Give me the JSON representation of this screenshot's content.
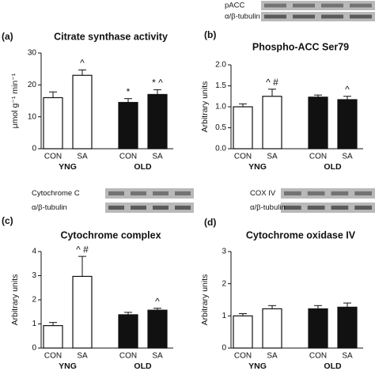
{
  "chart_data": [
    {
      "type": "bar",
      "panel": "(a)",
      "title": "Citrate synthase activity",
      "y_label": "μmol g⁻¹ min⁻¹",
      "categories": [
        "CON",
        "SA",
        "CON",
        "SA"
      ],
      "groups": [
        "YNG",
        "OLD"
      ],
      "values": [
        16,
        23,
        14.5,
        17
      ],
      "errors": [
        1.8,
        1.7,
        1.2,
        1.5
      ],
      "colors": [
        "#ffffff",
        "#ffffff",
        "#111111",
        "#111111"
      ],
      "annotations": [
        null,
        "^",
        "*",
        "* ^"
      ],
      "ylim": [
        0,
        30
      ],
      "yticks": [
        0,
        10,
        20,
        30
      ]
    },
    {
      "type": "bar",
      "panel": "(b)",
      "title": "Phospho-ACC Ser79",
      "y_label": "Arbitrary units",
      "blot_labels": [
        "pACC",
        "α/β-tubulin"
      ],
      "categories": [
        "CON",
        "SA",
        "CON",
        "SA"
      ],
      "groups": [
        "YNG",
        "OLD"
      ],
      "values": [
        1.0,
        1.25,
        1.23,
        1.17
      ],
      "errors": [
        0.07,
        0.17,
        0.05,
        0.08
      ],
      "colors": [
        "#ffffff",
        "#ffffff",
        "#111111",
        "#111111"
      ],
      "annotations": [
        null,
        "^ #",
        null,
        "^"
      ],
      "ylim": [
        0,
        2
      ],
      "yticks": [
        {
          "value": 0,
          "label": "0.0"
        },
        {
          "value": 0.5,
          "label": "0.5"
        },
        {
          "value": 1,
          "label": "1.0"
        },
        {
          "value": 1.5,
          "label": "1.5"
        },
        {
          "value": 2,
          "label": "2.0"
        }
      ]
    },
    {
      "type": "bar",
      "panel": "(c)",
      "title": "Cytochrome complex",
      "y_label": "Arbitrary units",
      "blot_labels": [
        "Cytochrome C",
        "α/β-tubulin"
      ],
      "categories": [
        "CON",
        "SA",
        "CON",
        "SA"
      ],
      "groups": [
        "YNG",
        "OLD"
      ],
      "values": [
        0.93,
        2.97,
        1.38,
        1.57
      ],
      "errors": [
        0.13,
        0.83,
        0.1,
        0.08
      ],
      "colors": [
        "#ffffff",
        "#ffffff",
        "#111111",
        "#111111"
      ],
      "annotations": [
        null,
        "^ #",
        null,
        "^"
      ],
      "ylim": [
        0,
        4
      ],
      "yticks": [
        0,
        1,
        2,
        3,
        4
      ]
    },
    {
      "type": "bar",
      "panel": "(d)",
      "title": "Cytochrome oxidase IV",
      "y_label": "Arbitrary units",
      "blot_labels": [
        "COX IV",
        "α/β-tubulin"
      ],
      "categories": [
        "CON",
        "SA",
        "CON",
        "SA"
      ],
      "groups": [
        "YNG",
        "OLD"
      ],
      "values": [
        1.0,
        1.22,
        1.22,
        1.27
      ],
      "errors": [
        0.07,
        0.1,
        0.1,
        0.13
      ],
      "colors": [
        "#ffffff",
        "#ffffff",
        "#111111",
        "#111111"
      ],
      "annotations": [
        null,
        null,
        null,
        null
      ],
      "ylim": [
        0,
        3
      ],
      "yticks": [
        0,
        1,
        2,
        3
      ]
    }
  ]
}
